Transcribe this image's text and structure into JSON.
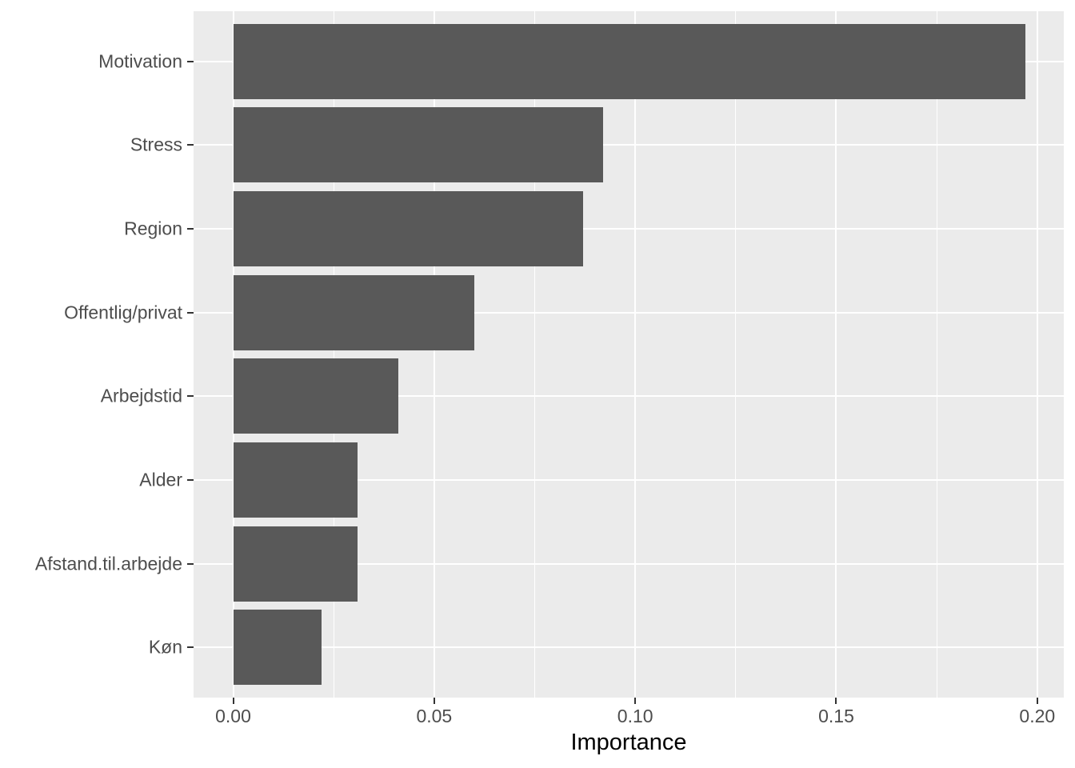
{
  "chart_data": {
    "type": "bar",
    "orientation": "horizontal",
    "title": "",
    "xlabel": "Importance",
    "ylabel": "",
    "categories": [
      "Motivation",
      "Stress",
      "Region",
      "Offentlig/privat",
      "Arbejdstid",
      "Alder",
      "Afstand.til.arbejde",
      "Køn"
    ],
    "values": [
      0.197,
      0.092,
      0.087,
      0.06,
      0.041,
      0.031,
      0.031,
      0.022
    ],
    "x_tick_labels": [
      "0.00",
      "0.05",
      "0.10",
      "0.15",
      "0.20"
    ],
    "x_tick_values": [
      0.0,
      0.05,
      0.1,
      0.15,
      0.2
    ],
    "xlim": [
      -0.00985,
      0.2066
    ],
    "grid": "major-and-minor-vertical-white, major-horizontal-white",
    "legend": "none",
    "colors": {
      "bar_fill": "#595959",
      "panel_background": "#EBEBEB",
      "gridline": "#FFFFFF",
      "axis_text": "#4D4D4D",
      "axis_title": "#000000",
      "tick_mark": "#333333",
      "figure_background": "#FFFFFF"
    }
  }
}
